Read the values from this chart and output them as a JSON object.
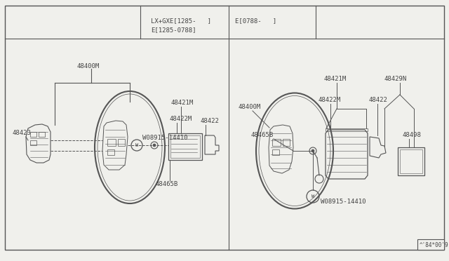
{
  "bg_color": "#f0f0ec",
  "line_color": "#555555",
  "text_color": "#444444",
  "title_left1": "LX+GXE[1285-   ]",
  "title_left2": "E[1285-0788]",
  "title_right": "E[0788-   ]",
  "watermark": "^'84*00'9",
  "fig_w": 6.4,
  "fig_h": 3.72,
  "dpi": 100
}
